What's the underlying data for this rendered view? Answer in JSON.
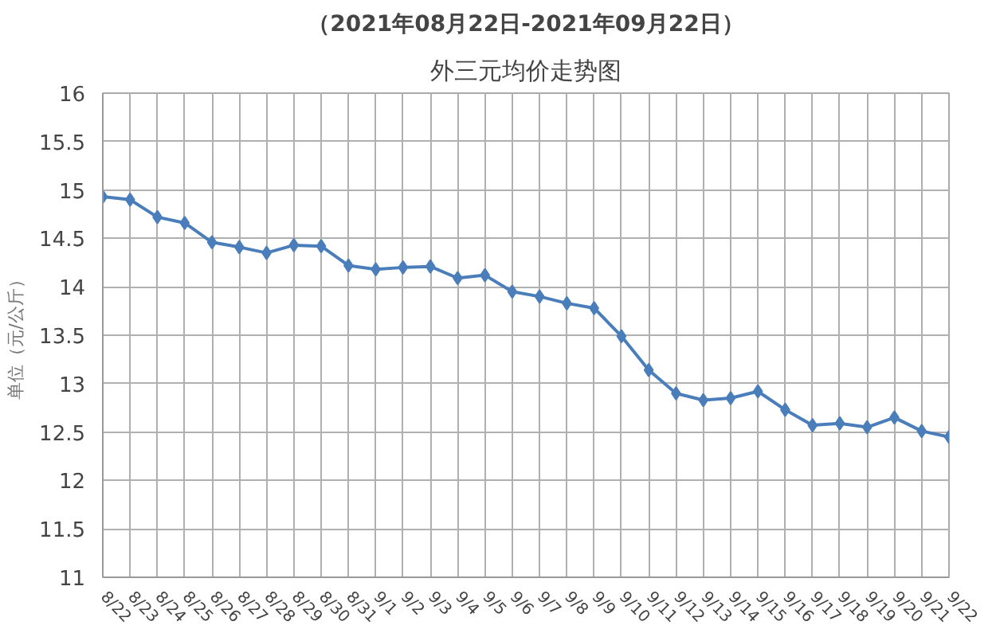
{
  "chart_data": {
    "type": "line",
    "title": "（2021年08月22日-2021年09月22日）",
    "subtitle": "外三元均价走势图",
    "ylabel": "单位（元/公斤）",
    "categories": [
      "8/22",
      "8/23",
      "8/24",
      "8/25",
      "8/26",
      "8/27",
      "8/28",
      "8/29",
      "8/30",
      "8/31",
      "9/1",
      "9/2",
      "9/3",
      "9/4",
      "9/5",
      "9/6",
      "9/7",
      "9/8",
      "9/9",
      "9/10",
      "9/11",
      "9/12",
      "9/13",
      "9/14",
      "9/15",
      "9/16",
      "9/17",
      "9/18",
      "9/19",
      "9/20",
      "9/21",
      "9/22"
    ],
    "series": [
      {
        "color": "#4a7ebb",
        "values": [
          14.93,
          14.9,
          14.72,
          14.66,
          14.46,
          14.41,
          14.35,
          14.43,
          14.42,
          14.22,
          14.18,
          14.2,
          14.21,
          14.09,
          14.12,
          13.95,
          13.9,
          13.83,
          13.78,
          13.49,
          13.14,
          12.9,
          12.83,
          12.85,
          12.92,
          12.73,
          12.57,
          12.59,
          12.55,
          12.65,
          12.51,
          12.45
        ]
      }
    ],
    "ylim": [
      11,
      16
    ],
    "yticks": [
      11,
      11.5,
      12,
      12.5,
      13,
      13.5,
      14,
      14.5,
      15,
      15.5,
      16
    ],
    "grid": true,
    "marker": "diamond",
    "line_style": "solid"
  }
}
